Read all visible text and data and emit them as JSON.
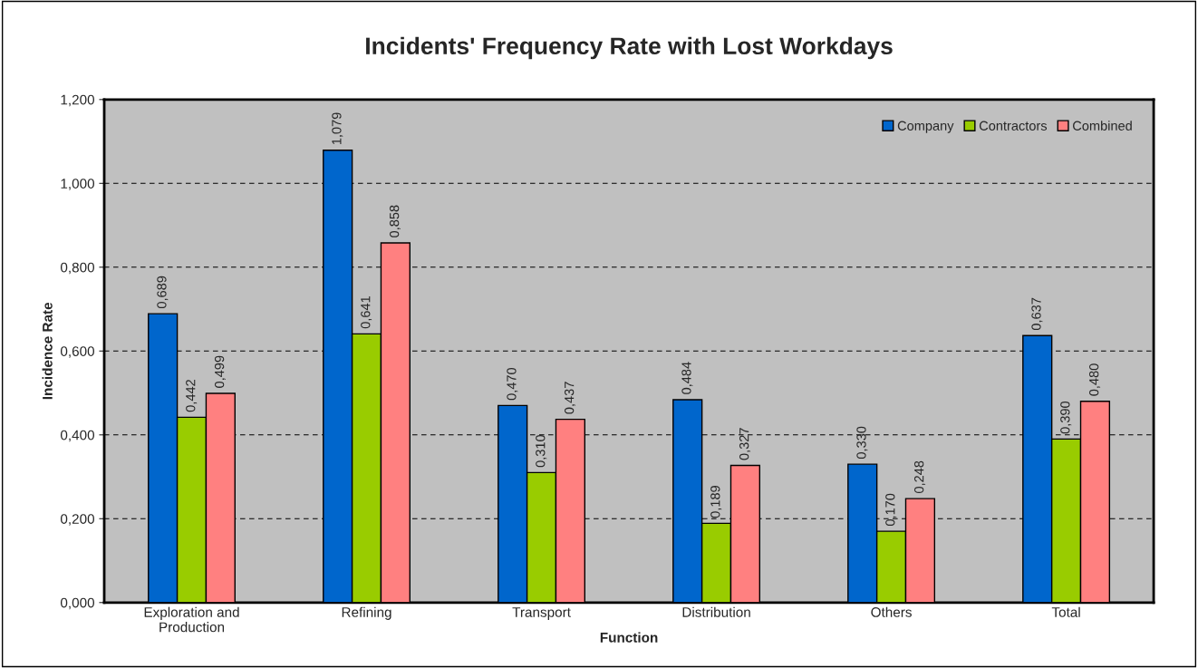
{
  "chart_data": {
    "type": "bar",
    "title": "Incidents' Frequency Rate with Lost Workdays",
    "xlabel": "Function",
    "ylabel": "Incidence Rate",
    "categories": [
      "Exploration and\nProduction",
      "Refining",
      "Transport",
      "Distribution",
      "Others",
      "Total"
    ],
    "series": [
      {
        "name": "Company",
        "color": "#0066cc",
        "values": [
          0.689,
          1.079,
          0.47,
          0.484,
          0.33,
          0.637
        ],
        "value_labels": [
          "0,689",
          "1,079",
          "0,470",
          "0,484",
          "0,330",
          "0,637"
        ]
      },
      {
        "name": "Contractors",
        "color": "#99cc00",
        "values": [
          0.442,
          0.641,
          0.31,
          0.189,
          0.17,
          0.39
        ],
        "value_labels": [
          "0,442",
          "0,641",
          "0,310",
          "0,189",
          "0,170",
          "0,390"
        ]
      },
      {
        "name": "Combined",
        "color": "#ff8080",
        "values": [
          0.499,
          0.858,
          0.437,
          0.327,
          0.248,
          0.48
        ],
        "value_labels": [
          "0,499",
          "0,858",
          "0,437",
          "0,327",
          "0,248",
          "0,480"
        ]
      }
    ],
    "ylim": [
      0,
      1.2
    ],
    "yticks": [
      {
        "value": 0,
        "label": "0,000"
      },
      {
        "value": 0.2,
        "label": "0,200"
      },
      {
        "value": 0.4,
        "label": "0,400"
      },
      {
        "value": 0.6,
        "label": "0,600"
      },
      {
        "value": 0.8,
        "label": "0,800"
      },
      {
        "value": 1.0,
        "label": "1,000"
      },
      {
        "value": 1.2,
        "label": "1,200"
      }
    ],
    "grid": "y",
    "legend": "top right"
  }
}
